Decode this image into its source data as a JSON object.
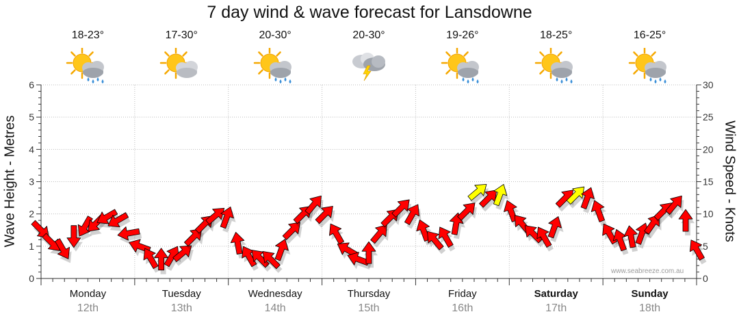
{
  "chart_data": {
    "type": "line",
    "title": "7 day wind & wave forecast for Lansdowne",
    "ylabel_left": "Wave Height - Metres",
    "ylabel_right": "Wind Speed - Knots",
    "ylim_left": [
      0,
      6
    ],
    "ylim_right": [
      0,
      30
    ],
    "yticks_left": [
      "0",
      "1",
      "2",
      "3",
      "4",
      "5",
      "6"
    ],
    "yticks_right": [
      "0",
      "5",
      "10",
      "15",
      "20",
      "25",
      "30"
    ],
    "grid": true,
    "days": [
      {
        "name": "Monday",
        "date": "12th",
        "temp": "18-23°",
        "icon": "sun-cloud-rain-icon",
        "bold": false
      },
      {
        "name": "Tuesday",
        "date": "13th",
        "temp": "17-30°",
        "icon": "sun-cloud-icon",
        "bold": false
      },
      {
        "name": "Wednesday",
        "date": "14th",
        "temp": "20-30°",
        "icon": "sun-cloud-rain-icon",
        "bold": false
      },
      {
        "name": "Thursday",
        "date": "15th",
        "temp": "20-30°",
        "icon": "storm-cloud-icon",
        "bold": false
      },
      {
        "name": "Friday",
        "date": "16th",
        "temp": "19-26°",
        "icon": "sun-cloud-rain-icon",
        "bold": false
      },
      {
        "name": "Saturday",
        "date": "17th",
        "temp": "18-25°",
        "icon": "sun-cloud-rain-icon",
        "bold": true
      },
      {
        "name": "Sunday",
        "date": "18th",
        "temp": "16-25°",
        "icon": "sun-cloud-rain-icon",
        "bold": true
      }
    ],
    "series": [
      {
        "name": "Wind Speed (knots)",
        "axis": "right",
        "step_hours": 3,
        "strong_threshold_knots": 13,
        "values": [
          7.5,
          5.5,
          4.5,
          6.5,
          8,
          8.5,
          9.5,
          9,
          7,
          5,
          3.2,
          3,
          3.5,
          4,
          6.5,
          8.5,
          9.8,
          9.5,
          5.5,
          3.5,
          3.2,
          3,
          4.5,
          7.5,
          10,
          11.5,
          10,
          7,
          4.5,
          3,
          4,
          7,
          9.5,
          11,
          10,
          7.5,
          6,
          6.5,
          8.5,
          10.5,
          13.5,
          12.5,
          13,
          10.5,
          8.5,
          7,
          6.5,
          8,
          12.5,
          13,
          12.5,
          10.5,
          7,
          6,
          6.5,
          7,
          8.5,
          10.5,
          11.5,
          9,
          4.5
        ],
        "directions_deg": [
          315,
          315,
          330,
          0,
          30,
          45,
          60,
          60,
          80,
          110,
          150,
          180,
          210,
          230,
          225,
          225,
          230,
          200,
          170,
          150,
          135,
          135,
          200,
          225,
          225,
          220,
          225,
          150,
          120,
          110,
          180,
          220,
          225,
          225,
          210,
          160,
          140,
          150,
          190,
          225,
          230,
          225,
          200,
          160,
          140,
          135,
          150,
          200,
          225,
          225,
          200,
          160,
          150,
          160,
          170,
          200,
          215,
          225,
          220,
          180,
          150
        ]
      }
    ],
    "watermark": "www.seabreeze.com.au"
  }
}
